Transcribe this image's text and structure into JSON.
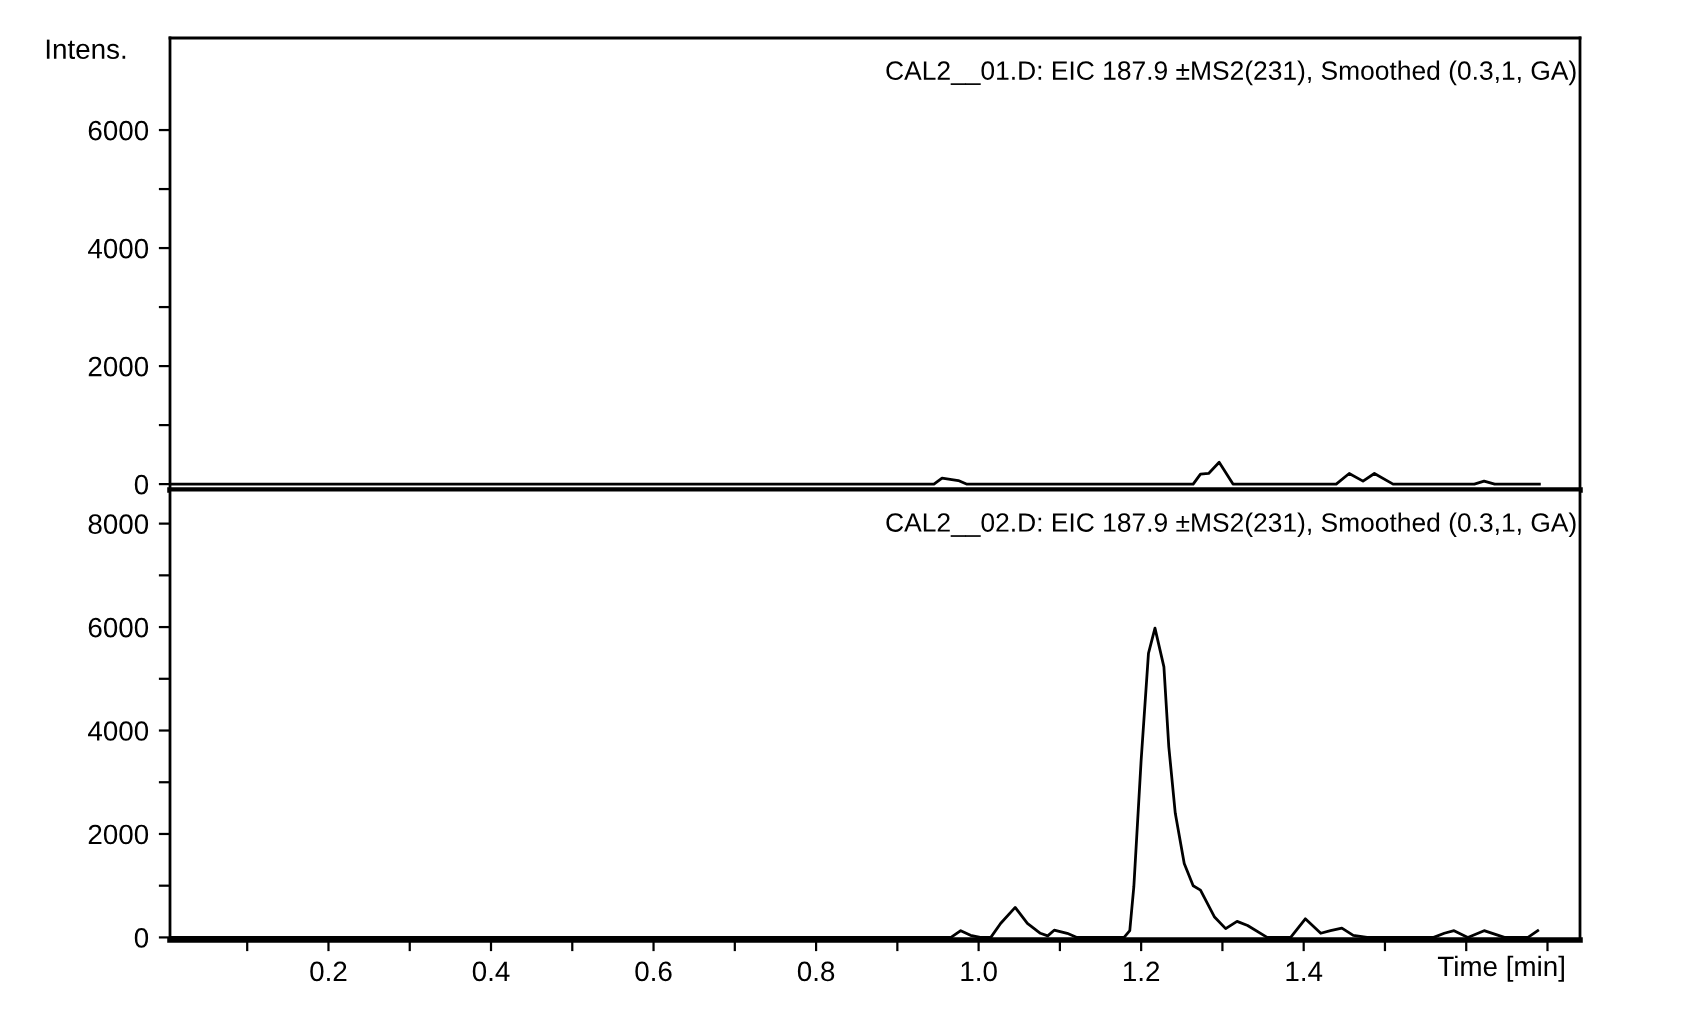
{
  "chart_data": [
    {
      "type": "line",
      "ylabel": "Intens.",
      "annotations": [
        "CAL2__01.D: EIC 187.9 ±MS2(231), Smoothed (0.3,1, GA)"
      ],
      "tick_labels": "y",
      "xlim": [
        0.005,
        1.74
      ],
      "ylim": [
        -100,
        7560
      ],
      "yticks": [
        0,
        {
          "value": 1000,
          "label": null
        },
        2000,
        {
          "value": 3000,
          "label": null
        },
        4000,
        {
          "value": 5000,
          "label": null
        },
        6000
      ],
      "series": [
        {
          "color": "#000000",
          "x": [
            0.005,
            0.945,
            0.955,
            0.975,
            0.985,
            1.264,
            1.273,
            1.283,
            1.296,
            1.313,
            1.44,
            1.456,
            1.473,
            1.487,
            1.51,
            1.61,
            1.622,
            1.635,
            1.69
          ],
          "values": [
            0,
            0,
            100,
            60,
            0,
            0,
            170,
            180,
            370,
            0,
            0,
            180,
            50,
            180,
            0,
            0,
            50,
            0,
            0
          ]
        }
      ]
    },
    {
      "type": "line",
      "xlabel": "Time [min]",
      "annotations": [
        "CAL2__02.D: EIC 187.9 ±MS2(231), Smoothed (0.3,1, GA)"
      ],
      "xlim": [
        0.005,
        1.74
      ],
      "ylim": [
        -50,
        8650
      ],
      "xticks": [
        {
          "value": 0.1,
          "label": null
        },
        {
          "value": 0.2,
          "label": "0.2"
        },
        {
          "value": 0.3,
          "label": null
        },
        {
          "value": 0.4,
          "label": "0.4"
        },
        {
          "value": 0.5,
          "label": null
        },
        {
          "value": 0.6,
          "label": "0.6"
        },
        {
          "value": 0.7,
          "label": null
        },
        {
          "value": 0.8,
          "label": "0.8"
        },
        {
          "value": 0.9,
          "label": null
        },
        {
          "value": 1.0,
          "label": "1.0"
        },
        {
          "value": 1.1,
          "label": null
        },
        {
          "value": 1.2,
          "label": "1.2"
        },
        {
          "value": 1.3,
          "label": null
        },
        {
          "value": 1.4,
          "label": "1.4"
        },
        {
          "value": 1.5,
          "label": null
        },
        {
          "value": 1.6,
          "label": null
        },
        {
          "value": 1.7,
          "label": null
        }
      ],
      "yticks": [
        0,
        {
          "value": 1000,
          "label": null
        },
        2000,
        {
          "value": 3000,
          "label": null
        },
        4000,
        {
          "value": 5000,
          "label": null
        },
        6000,
        {
          "value": 7000,
          "label": null
        },
        8000
      ],
      "series": [
        {
          "color": "#000000",
          "x": [
            0.005,
            0.966,
            0.978,
            0.99,
            1.002,
            1.015,
            1.027,
            1.045,
            1.06,
            1.076,
            1.085,
            1.093,
            1.109,
            1.121,
            1.179,
            1.186,
            1.191,
            1.2,
            1.209,
            1.217,
            1.228,
            1.234,
            1.242,
            1.253,
            1.264,
            1.273,
            1.29,
            1.304,
            1.318,
            1.331,
            1.355,
            1.384,
            1.402,
            1.421,
            1.433,
            1.447,
            1.461,
            1.478,
            1.56,
            1.573,
            1.585,
            1.602,
            1.622,
            1.647,
            1.676,
            1.688
          ],
          "values": [
            0,
            0,
            130,
            40,
            0,
            0,
            270,
            580,
            270,
            80,
            30,
            140,
            80,
            0,
            0,
            130,
            980,
            3430,
            5490,
            5980,
            5230,
            3690,
            2400,
            1430,
            1000,
            915,
            400,
            170,
            310,
            230,
            0,
            0,
            360,
            80,
            130,
            180,
            40,
            0,
            0,
            80,
            130,
            0,
            130,
            0,
            0,
            130
          ]
        }
      ]
    }
  ]
}
